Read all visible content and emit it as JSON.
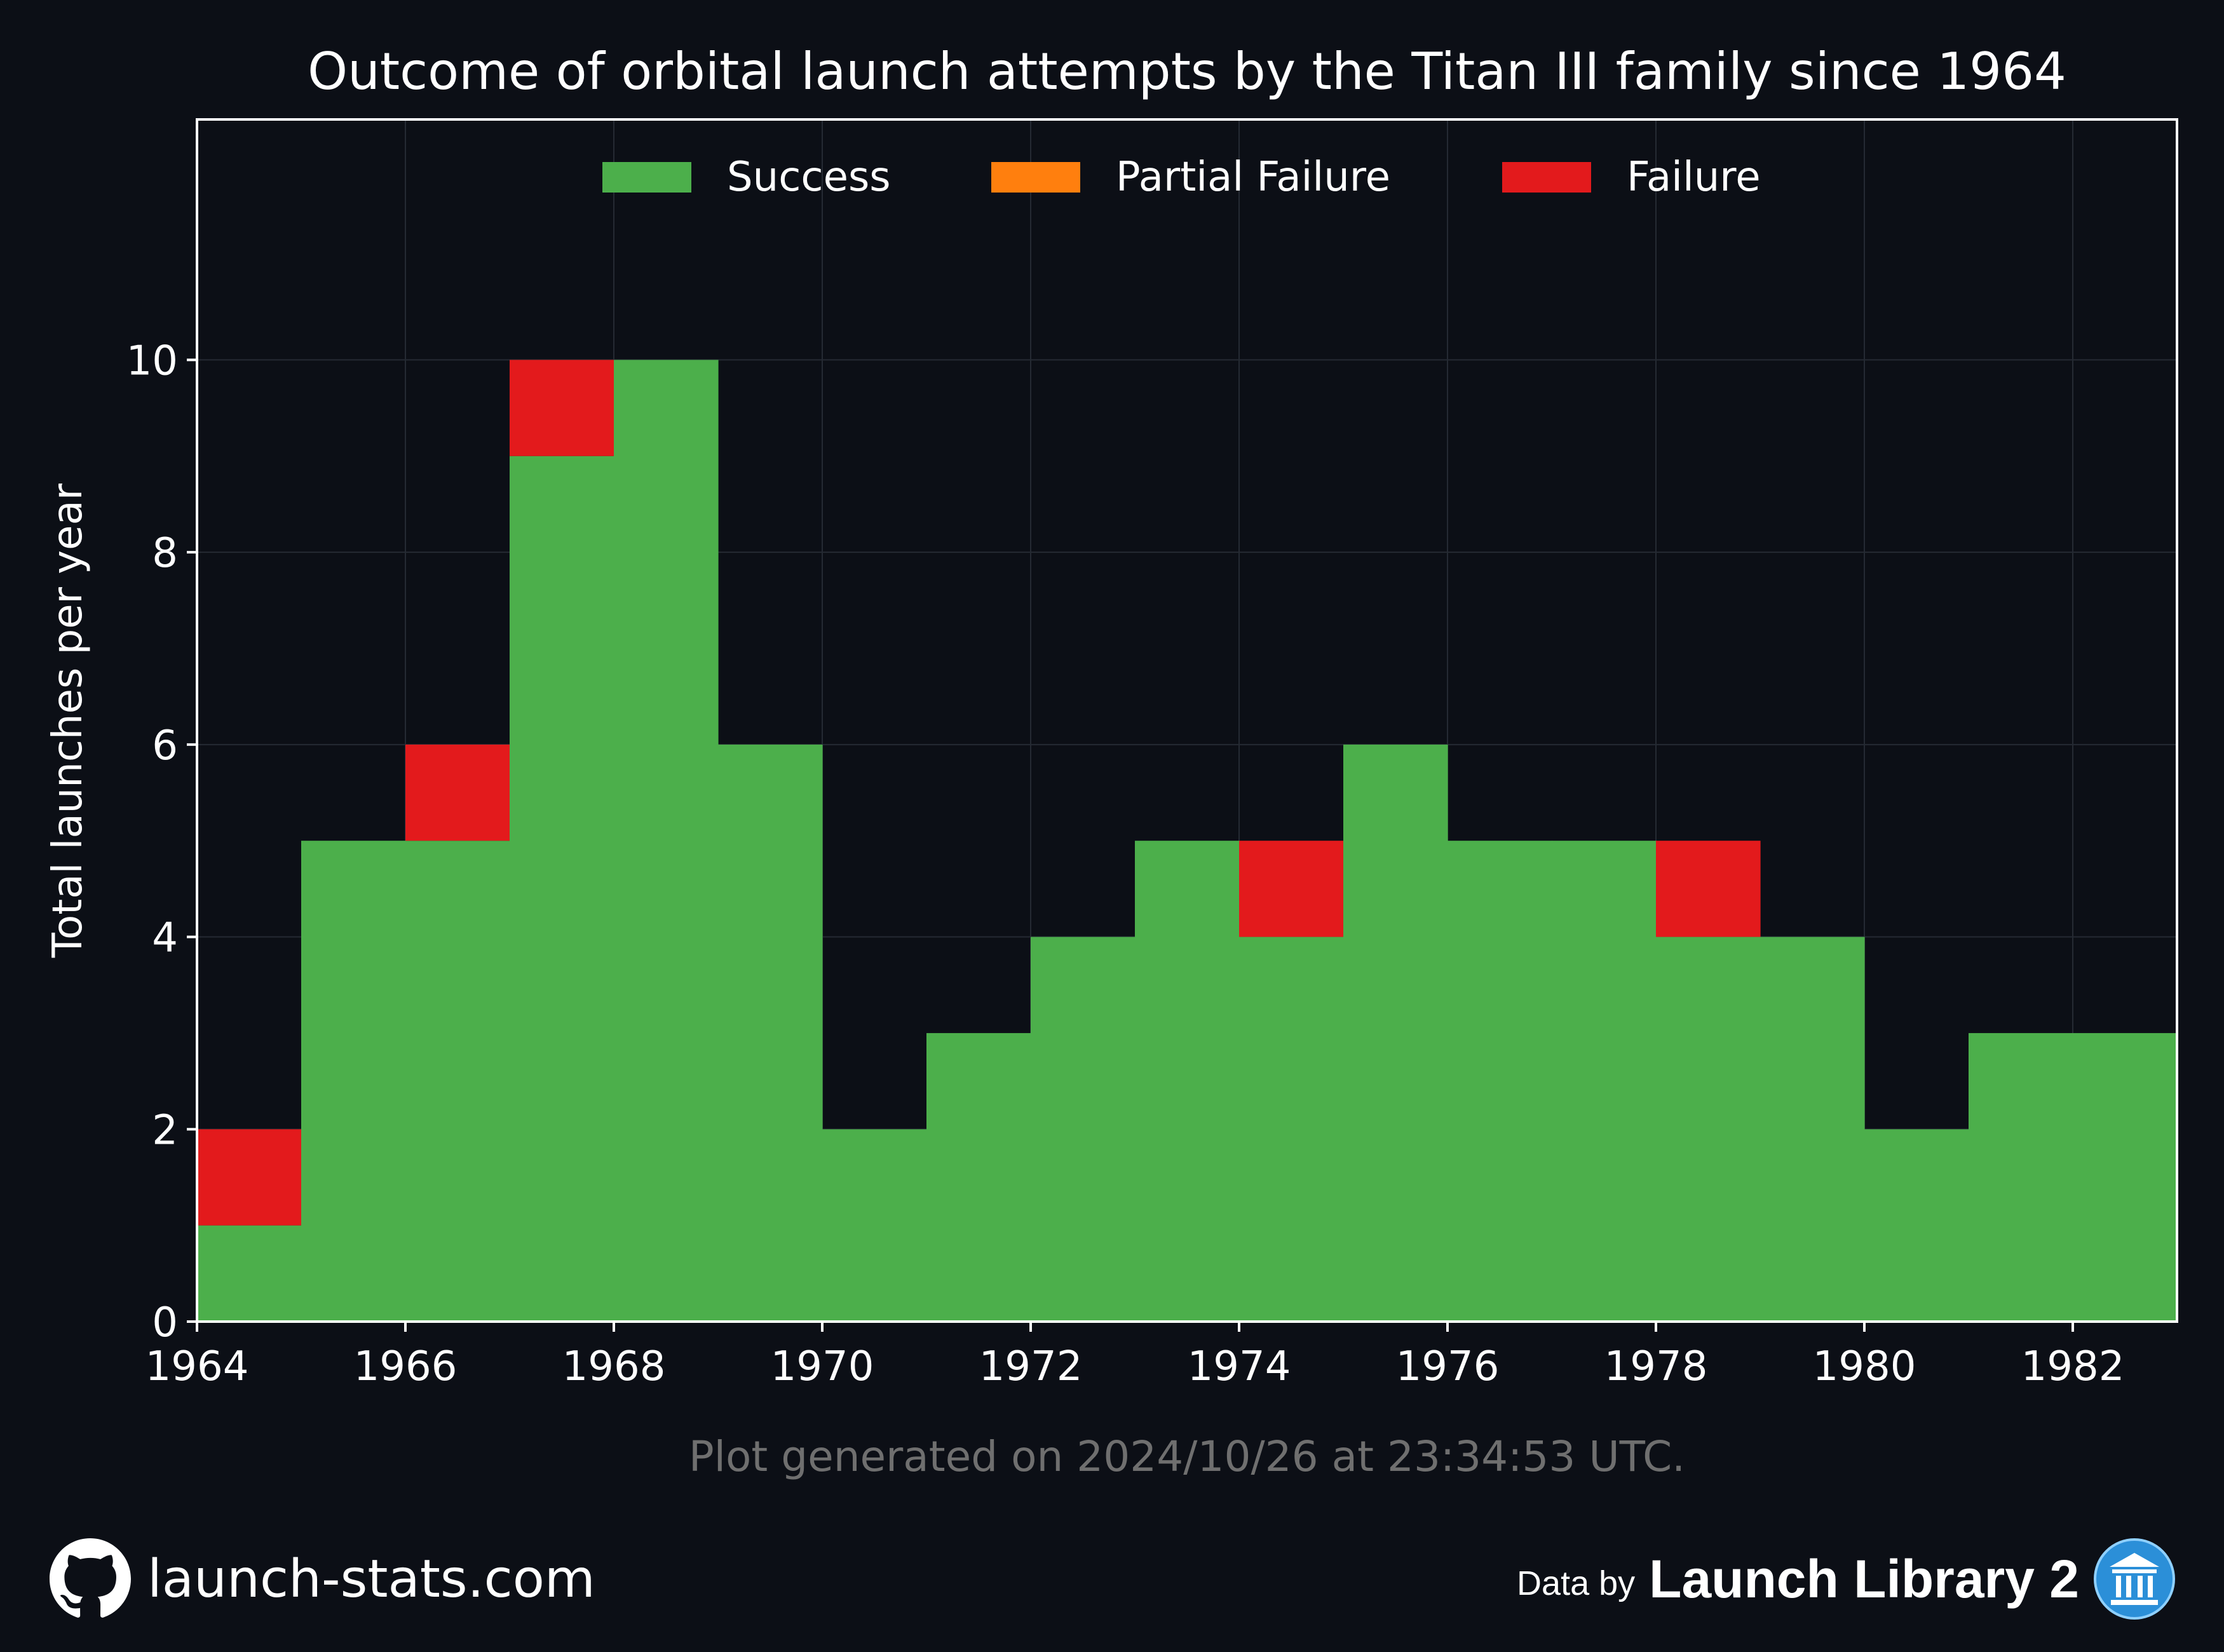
{
  "chart_data": {
    "type": "bar",
    "stacked": true,
    "title": "Outcome of orbital launch attempts by the Titan III family since 1964",
    "xlabel": "",
    "ylabel": "Total launches per year",
    "x": [
      1964,
      1965,
      1966,
      1967,
      1968,
      1969,
      1970,
      1971,
      1972,
      1973,
      1974,
      1975,
      1976,
      1977,
      1978,
      1979,
      1980,
      1981,
      1982
    ],
    "series": [
      {
        "name": "Success",
        "color": "#4caf4b",
        "values": [
          1,
          5,
          5,
          9,
          10,
          6,
          2,
          3,
          4,
          5,
          4,
          6,
          5,
          5,
          4,
          4,
          2,
          3,
          3
        ]
      },
      {
        "name": "Partial Failure",
        "color": "#ff7f0e",
        "values": [
          0,
          0,
          0,
          0,
          0,
          0,
          0,
          0,
          0,
          0,
          0,
          0,
          0,
          0,
          0,
          0,
          0,
          0,
          0
        ]
      },
      {
        "name": "Failure",
        "color": "#e31a1c",
        "values": [
          1,
          0,
          1,
          1,
          0,
          0,
          0,
          0,
          0,
          0,
          1,
          0,
          0,
          0,
          1,
          0,
          0,
          0,
          0
        ]
      }
    ],
    "xlim": [
      1964,
      1983
    ],
    "ylim": [
      0,
      12.5
    ],
    "xticks": [
      1964,
      1966,
      1968,
      1970,
      1972,
      1974,
      1976,
      1978,
      1980,
      1982
    ],
    "yticks": [
      0,
      2,
      4,
      6,
      8,
      10
    ],
    "grid": true,
    "legend_position": "top-center"
  },
  "footer": {
    "generated": "Plot generated on 2024/10/26 at 23:34:53 UTC.",
    "site": "launch-stats.com",
    "data_by": "Data by",
    "library": "Launch Library 2"
  },
  "colors": {
    "background": "#0c0f16",
    "text": "#ffffff",
    "muted_text": "#6f6f6f",
    "library_badge": "#2b8fd8"
  },
  "icons": {
    "site": "github-icon",
    "library": "library-building-icon"
  }
}
